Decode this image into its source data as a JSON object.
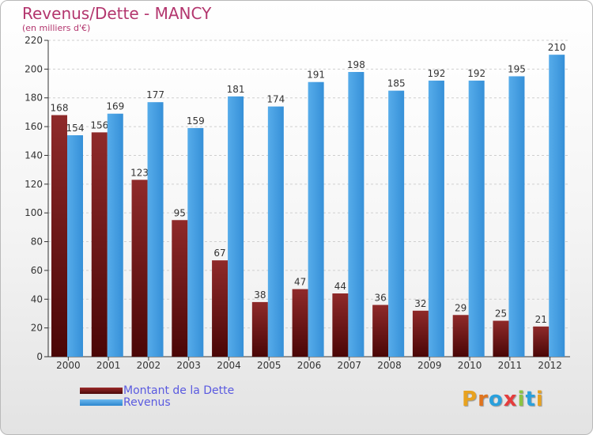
{
  "header": {
    "title": "Revenus/Dette - MANCY",
    "subtitle": "(en milliers d'€)"
  },
  "logo": {
    "text": "Proxiti",
    "letter_colors": [
      "#e8a21f",
      "#e0741e",
      "#2aa0dc",
      "#e53c3c",
      "#8bc443",
      "#2aa0dc",
      "#e8a21f"
    ]
  },
  "colors": {
    "dette": "#7a1e1e",
    "revenus": "#3f9fe3",
    "title": "#b3366e",
    "legend_text": "#5a5ae0"
  },
  "chart_data": {
    "type": "bar",
    "title": "Revenus/Dette - MANCY",
    "ylabel": "",
    "xlabel": "",
    "ylim": [
      0,
      220
    ],
    "yticks": [
      0,
      20,
      40,
      60,
      80,
      100,
      120,
      140,
      160,
      180,
      200,
      220
    ],
    "grid": true,
    "legend_position": "bottom-left",
    "categories": [
      "2000",
      "2001",
      "2002",
      "2003",
      "2004",
      "2005",
      "2006",
      "2007",
      "2008",
      "2009",
      "2010",
      "2011",
      "2012"
    ],
    "series": [
      {
        "name": "Montant de la Dette",
        "values": [
          168,
          156,
          123,
          95,
          67,
          38,
          47,
          44,
          36,
          32,
          29,
          25,
          21
        ]
      },
      {
        "name": "Revenus",
        "values": [
          154,
          169,
          177,
          159,
          181,
          174,
          191,
          198,
          185,
          192,
          192,
          195,
          210
        ]
      }
    ]
  }
}
